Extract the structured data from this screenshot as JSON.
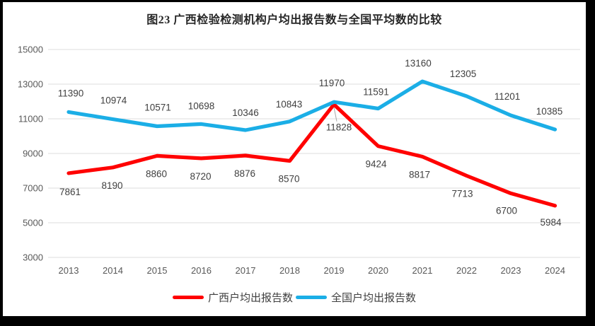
{
  "window": {
    "background": "#000000",
    "canvas_background": "#ffffff"
  },
  "chart_data": {
    "type": "line",
    "title": "图23 广西检验检测机构户均出报告数与全国平均数的比较",
    "categories": [
      "2013",
      "2014",
      "2015",
      "2016",
      "2017",
      "2018",
      "2019",
      "2020",
      "2021",
      "2022",
      "2023",
      "2024"
    ],
    "series": [
      {
        "name": "广西户均出报告数",
        "color": "#FF0000",
        "values": [
          7861,
          8190,
          8860,
          8720,
          8876,
          8570,
          11828,
          9424,
          8817,
          7713,
          6700,
          5984
        ]
      },
      {
        "name": "全国户均出报告数",
        "color": "#1BAEE6",
        "values": [
          11390,
          10974,
          10571,
          10698,
          10346,
          10843,
          11970,
          11591,
          13160,
          12305,
          11201,
          10385
        ]
      }
    ],
    "ylim": [
      3000,
      15000
    ],
    "yticks": [
      3000,
      5000,
      7000,
      9000,
      11000,
      13000,
      15000
    ],
    "xlabel": "",
    "ylabel": "",
    "grid": "horizontal",
    "gridline_color": "#DCDCDC",
    "axis_label_color": "#595959",
    "data_label_color": "#404040",
    "leader_line_color": "#A6A6A6",
    "data_labels": true,
    "legend_position": "bottom"
  },
  "legend": {
    "items": [
      {
        "label": "广西户均出报告数",
        "color": "#FF0000"
      },
      {
        "label": "全国户均出报告数",
        "color": "#1BAEE6"
      }
    ]
  }
}
